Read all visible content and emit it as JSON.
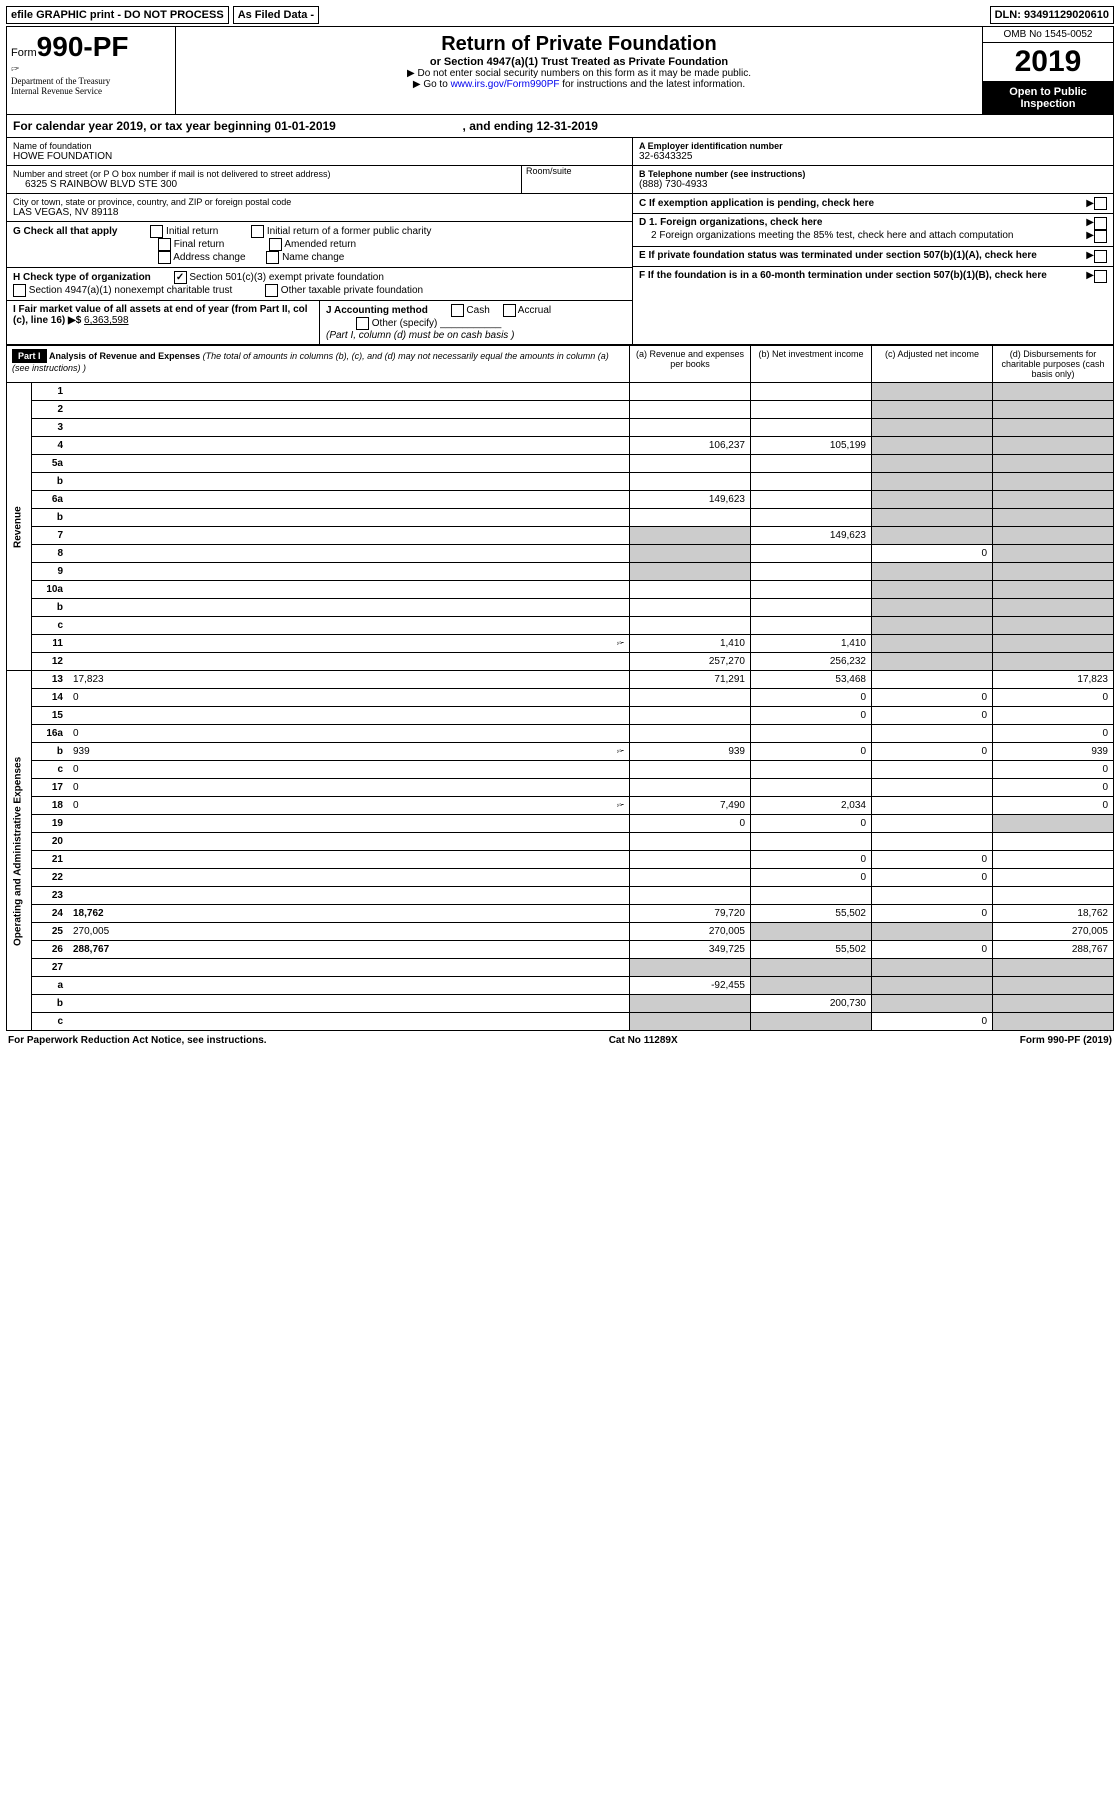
{
  "topbar": {
    "efile": "efile GRAPHIC print - DO NOT PROCESS",
    "asfiled": "As Filed Data -",
    "dln_label": "DLN:",
    "dln": "93491129020610"
  },
  "header": {
    "form_prefix": "Form",
    "form_num": "990-PF",
    "dept": "Department of the Treasury\nInternal Revenue Service",
    "title": "Return of Private Foundation",
    "subtitle": "or Section 4947(a)(1) Trust Treated as Private Foundation",
    "instr1": "▶ Do not enter social security numbers on this form as it may be made public.",
    "instr2_pre": "▶ Go to ",
    "instr2_link": "www.irs.gov/Form990PF",
    "instr2_post": " for instructions and the latest information.",
    "omb": "OMB No 1545-0052",
    "year": "2019",
    "open": "Open to Public Inspection"
  },
  "cal": {
    "text_a": "For calendar year 2019, or tax year beginning ",
    "begin": "01-01-2019",
    "text_b": " , and ending ",
    "end": "12-31-2019"
  },
  "left": {
    "name_label": "Name of foundation",
    "name": "HOWE FOUNDATION",
    "street_label": "Number and street (or P O  box number if mail is not delivered to street address)",
    "room_label": "Room/suite",
    "street": "6325 S RAINBOW BLVD STE 300",
    "city_label": "City or town, state or province, country, and ZIP or foreign postal code",
    "city": "LAS VEGAS, NV  89118",
    "g_label": "G Check all that apply",
    "g_opts": [
      "Initial return",
      "Initial return of a former public charity",
      "Final return",
      "Amended return",
      "Address change",
      "Name change"
    ],
    "h_label": "H Check type of organization",
    "h_opts": [
      "Section 501(c)(3) exempt private foundation",
      "Section 4947(a)(1) nonexempt charitable trust",
      "Other taxable private foundation"
    ],
    "i_label": "I Fair market value of all assets at end of year (from Part II, col  (c), line 16) ▶$ ",
    "i_val": "6,363,598",
    "j_label": "J Accounting method",
    "j_opts": [
      "Cash",
      "Accrual",
      "Other (specify)"
    ],
    "j_note": "(Part I, column (d) must be on cash basis )"
  },
  "right": {
    "a_label": "A Employer identification number",
    "a_val": "32-6343325",
    "b_label": "B Telephone number (see instructions)",
    "b_val": "(888) 730-4933",
    "c_label": "C If exemption application is pending, check here",
    "d1": "D 1. Foreign organizations, check here",
    "d2": "2  Foreign organizations meeting the 85% test, check here and attach computation",
    "e_label": "E  If private foundation status was terminated under section 507(b)(1)(A), check here",
    "f_label": "F  If the foundation is in a 60-month termination under section 507(b)(1)(B), check here"
  },
  "p1": {
    "part": "Part I",
    "heading": "Analysis of Revenue and Expenses",
    "heading_note": "(The total of amounts in columns (b), (c), and (d) may not necessarily equal the amounts in column (a) (see instructions) )",
    "col_a": "(a)   Revenue and expenses per books",
    "col_b": "(b)  Net investment income",
    "col_c": "(c)  Adjusted net income",
    "col_d": "(d)  Disbursements for charitable purposes (cash basis only)"
  },
  "rows": [
    {
      "n": "1",
      "d": "",
      "a": "",
      "b": "",
      "c": ""
    },
    {
      "n": "2",
      "d": "",
      "a": "",
      "b": "",
      "c": ""
    },
    {
      "n": "3",
      "d": "",
      "a": "",
      "b": "",
      "c": ""
    },
    {
      "n": "4",
      "d": "",
      "a": "106,237",
      "b": "105,199",
      "c": ""
    },
    {
      "n": "5a",
      "d": "",
      "a": "",
      "b": "",
      "c": ""
    },
    {
      "n": "b",
      "d": "",
      "a": "",
      "b": "",
      "c": ""
    },
    {
      "n": "6a",
      "d": "",
      "a": "149,623",
      "b": "",
      "c": ""
    },
    {
      "n": "b",
      "d": "",
      "a": "",
      "b": "",
      "c": ""
    },
    {
      "n": "7",
      "d": "",
      "a": "",
      "b": "149,623",
      "c": ""
    },
    {
      "n": "8",
      "d": "",
      "a": "",
      "b": "",
      "c": "0"
    },
    {
      "n": "9",
      "d": "",
      "a": "",
      "b": "",
      "c": ""
    },
    {
      "n": "10a",
      "d": "",
      "a": "",
      "b": "",
      "c": ""
    },
    {
      "n": "b",
      "d": "",
      "a": "",
      "b": "",
      "c": ""
    },
    {
      "n": "c",
      "d": "",
      "a": "",
      "b": "",
      "c": ""
    },
    {
      "n": "11",
      "d": "",
      "icon": true,
      "a": "1,410",
      "b": "1,410",
      "c": ""
    },
    {
      "n": "12",
      "d": "",
      "bold": true,
      "a": "257,270",
      "b": "256,232",
      "c": ""
    },
    {
      "n": "13",
      "d": "17,823",
      "a": "71,291",
      "b": "53,468",
      "c": ""
    },
    {
      "n": "14",
      "d": "0",
      "a": "",
      "b": "0",
      "c": "0"
    },
    {
      "n": "15",
      "d": "",
      "a": "",
      "b": "0",
      "c": "0"
    },
    {
      "n": "16a",
      "d": "0",
      "a": "",
      "b": "",
      "c": ""
    },
    {
      "n": "b",
      "d": "939",
      "icon": true,
      "a": "939",
      "b": "0",
      "c": "0"
    },
    {
      "n": "c",
      "d": "0",
      "a": "",
      "b": "",
      "c": ""
    },
    {
      "n": "17",
      "d": "0",
      "a": "",
      "b": "",
      "c": ""
    },
    {
      "n": "18",
      "d": "0",
      "icon": true,
      "a": "7,490",
      "b": "2,034",
      "c": ""
    },
    {
      "n": "19",
      "d": "",
      "a": "0",
      "b": "0",
      "c": ""
    },
    {
      "n": "20",
      "d": "",
      "a": "",
      "b": "",
      "c": ""
    },
    {
      "n": "21",
      "d": "",
      "a": "",
      "b": "0",
      "c": "0"
    },
    {
      "n": "22",
      "d": "",
      "a": "",
      "b": "0",
      "c": "0"
    },
    {
      "n": "23",
      "d": "",
      "a": "",
      "b": "",
      "c": ""
    },
    {
      "n": "24",
      "d": "18,762",
      "bold": true,
      "a": "79,720",
      "b": "55,502",
      "c": "0"
    },
    {
      "n": "25",
      "d": "270,005",
      "a": "270,005",
      "b": "",
      "c": ""
    },
    {
      "n": "26",
      "d": "288,767",
      "bold": true,
      "a": "349,725",
      "b": "55,502",
      "c": "0"
    },
    {
      "n": "27",
      "d": "",
      "a": "",
      "b": "",
      "c": ""
    },
    {
      "n": "a",
      "d": "",
      "bold": true,
      "a": "-92,455",
      "b": "",
      "c": ""
    },
    {
      "n": "b",
      "d": "",
      "bold": true,
      "a": "",
      "b": "200,730",
      "c": ""
    },
    {
      "n": "c",
      "d": "",
      "bold": true,
      "a": "",
      "b": "",
      "c": "0"
    }
  ],
  "sections": {
    "revenue": "Revenue",
    "expenses": "Operating and Administrative Expenses"
  },
  "footer": {
    "left": "For Paperwork Reduction Act Notice, see instructions.",
    "mid": "Cat  No  11289X",
    "right": "Form 990-PF (2019)"
  }
}
